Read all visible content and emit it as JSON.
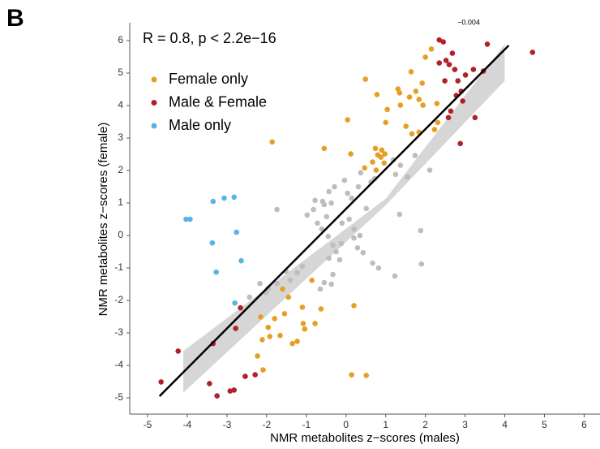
{
  "panel_label": "B",
  "corner_text": "−0.004",
  "chart_data": {
    "type": "scatter",
    "annotation": "R = 0.8, p < 2.2e−16",
    "xlabel": "NMR metabolites z−scores (males)",
    "ylabel": "NMR metabolites z−scores (female)",
    "xlim": [
      -5.45,
      6.4
    ],
    "ylim": [
      -5.5,
      6.55
    ],
    "xticks": [
      -5,
      -4,
      -3,
      -2,
      -1,
      0,
      1,
      2,
      3,
      4,
      5,
      6
    ],
    "yticks": [
      -5,
      -4,
      -3,
      -2,
      -1,
      0,
      1,
      2,
      3,
      4,
      5,
      6
    ],
    "legend": "top-left",
    "fit": {
      "color": "#000000",
      "x": [
        -4.7,
        4.1
      ],
      "values": [
        -4.95,
        5.85
      ]
    },
    "band": {
      "color": "#cccccc",
      "x": [
        -4.1,
        1,
        4.0
      ],
      "lower": [
        -4.84,
        0.93,
        4.76
      ],
      "upper": [
        -3.56,
        1.13,
        5.89
      ]
    },
    "series": [
      {
        "color": "#bdbdbd",
        "x": [
          -1.74,
          -0.98,
          -0.82,
          -0.55,
          -0.37,
          -0.49,
          -0.78,
          -0.72,
          -0.61,
          -0.45,
          -0.33,
          -0.25,
          -0.16,
          -0.43,
          -0.55,
          -0.37,
          -0.65,
          -0.33,
          -1.1,
          -1.23,
          -1.51,
          -1.74,
          -1.96,
          -2.17,
          -2.02,
          -2.43,
          -1.41,
          -0.1,
          0.08,
          0.2,
          0.35,
          0.2,
          0.29,
          0.43,
          0.67,
          0.82,
          1.23,
          1.9,
          1.88,
          1.35,
          0.51,
          0.04,
          0.14,
          0.31,
          0.63,
          -0.04,
          0.37,
          0.72,
          1.25,
          1.55,
          2.11,
          1.37,
          1.19,
          1.74,
          -0.12,
          -0.29,
          -0.43,
          -0.59
        ],
        "values": [
          0.8,
          0.63,
          0.8,
          0.95,
          1.0,
          0.58,
          1.08,
          0.38,
          0.2,
          -0.03,
          -0.3,
          -0.5,
          -0.75,
          -0.7,
          -1.45,
          -1.5,
          -1.65,
          -1.2,
          -0.95,
          -1.15,
          -1.1,
          -1.48,
          -1.63,
          -1.48,
          -1.75,
          -1.9,
          -1.38,
          0.38,
          0.5,
          0.2,
          0.0,
          -0.08,
          -0.38,
          -0.53,
          -0.85,
          -1.0,
          -1.25,
          -0.88,
          0.15,
          0.65,
          0.83,
          1.3,
          1.15,
          1.5,
          1.65,
          1.7,
          1.93,
          1.75,
          1.88,
          1.8,
          2.01,
          2.16,
          2.33,
          2.46,
          -0.25,
          1.5,
          1.35,
          1.05
        ]
      },
      {
        "name": "Female only",
        "color": "#e69f25",
        "x": [
          -1.86,
          0.49,
          0.04,
          -0.55,
          2.15,
          2.0,
          1.64,
          1.31,
          1.35,
          1.92,
          1.76,
          1.6,
          1.84,
          1.37,
          1.94,
          2.29,
          2.31,
          0.78,
          1.04,
          1.0,
          1.51,
          1.66,
          1.84,
          0.74,
          0.9,
          0.88,
          0.8,
          0.98,
          0.67,
          0.96,
          0.76,
          0.47,
          0.12,
          2.23,
          0.14,
          0.51,
          0.2,
          -1.6,
          -1.45,
          -1.55,
          -1.8,
          -1.96,
          -1.92,
          -2.11,
          -2.23,
          -2.09,
          -2.15,
          -1.66,
          -1.35,
          -1.23,
          -1.08,
          -1.04,
          -1.1,
          -0.78,
          -0.63,
          -0.86
        ],
        "values": [
          2.88,
          4.81,
          3.56,
          2.68,
          5.74,
          5.49,
          5.04,
          4.51,
          4.39,
          4.69,
          4.44,
          4.26,
          4.19,
          4.01,
          4.01,
          4.06,
          3.48,
          4.34,
          3.88,
          3.48,
          3.36,
          3.13,
          3.18,
          2.68,
          2.63,
          2.41,
          2.48,
          2.51,
          2.26,
          2.23,
          2.01,
          2.08,
          2.51,
          3.26,
          -4.29,
          -4.31,
          -2.16,
          -1.65,
          -1.9,
          -2.41,
          -2.56,
          -2.83,
          -3.11,
          -3.21,
          -3.71,
          -4.14,
          -2.51,
          -3.08,
          -3.33,
          -3.26,
          -2.71,
          -2.88,
          -2.21,
          -2.71,
          -2.26,
          -1.38
        ]
      },
      {
        "name": "Male & Female",
        "color": "#b2202a",
        "x": [
          -4.23,
          -4.66,
          -3.35,
          -3.44,
          -3.25,
          -2.92,
          -2.82,
          -2.54,
          -2.29,
          -2.66,
          -2.78,
          3.56,
          4.7,
          2.35,
          2.45,
          2.68,
          2.35,
          2.52,
          2.6,
          2.74,
          3.01,
          3.21,
          3.46,
          2.78,
          2.94,
          2.9,
          3.25,
          2.58,
          2.88,
          2.64,
          2.49,
          2.82
        ],
        "values": [
          -3.56,
          -4.51,
          -3.33,
          -4.56,
          -4.94,
          -4.79,
          -4.76,
          -4.34,
          -4.29,
          -2.23,
          -2.86,
          5.89,
          5.64,
          6.02,
          5.96,
          5.61,
          5.31,
          5.39,
          5.26,
          5.11,
          4.94,
          5.11,
          5.06,
          4.31,
          4.14,
          4.44,
          3.63,
          3.63,
          2.83,
          3.83,
          4.76,
          4.76
        ]
      },
      {
        "name": "Male only",
        "color": "#56b4e9",
        "x": [
          -4.03,
          -3.93,
          -3.35,
          -3.07,
          -2.82,
          -3.37,
          -3.27,
          -2.76,
          -2.64,
          -2.8
        ],
        "values": [
          0.5,
          0.5,
          1.05,
          1.15,
          1.18,
          -0.23,
          -1.13,
          0.1,
          -0.78,
          -2.08
        ]
      }
    ]
  }
}
